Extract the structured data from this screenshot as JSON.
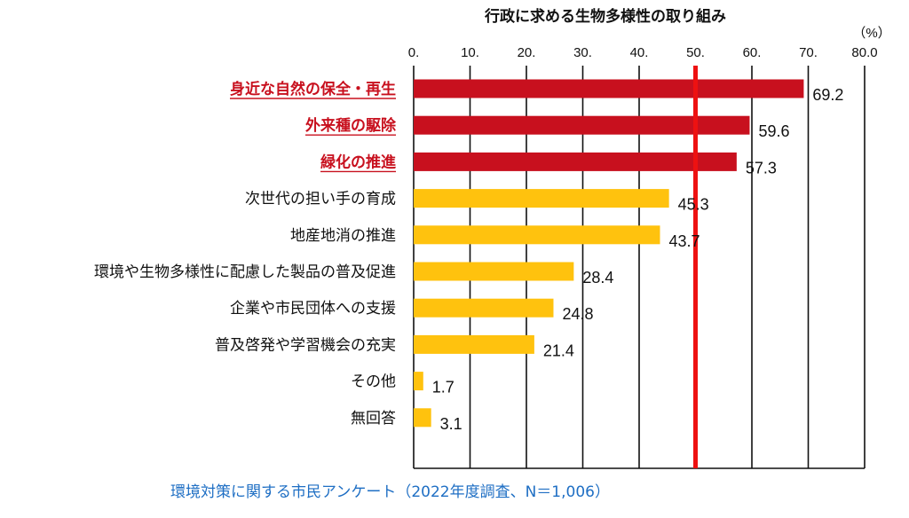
{
  "chart_data": {
    "type": "bar",
    "orientation": "horizontal",
    "title": "行政に求める生物多様性の取り組み",
    "unit": "（%）",
    "x_ticks": [
      "0.",
      "10.",
      "20.",
      "30.",
      "40.",
      "50.",
      "60.",
      "70.",
      "80.0"
    ],
    "xlim": [
      0,
      80
    ],
    "grid": true,
    "reference_line": {
      "value": 50,
      "color": "#ee1111"
    },
    "categories": [
      "身近な自然の保全・再生",
      "外来種の駆除",
      "緑化の推進",
      "次世代の担い手の育成",
      "地産地消の推進",
      "環境や生物多様性に配慮した製品の普及促進",
      "企業や市民団体への支援",
      "普及啓発や学習機会の充実",
      "その他",
      "無回答"
    ],
    "values": [
      69.2,
      59.6,
      57.3,
      45.3,
      43.7,
      28.4,
      24.8,
      21.4,
      1.7,
      3.1
    ],
    "value_labels": [
      "69.2",
      "59.6",
      "57.3",
      "45.3",
      "43.7",
      "28.4",
      "24.8",
      "21.4",
      "1.7",
      "3.1"
    ],
    "highlighted": [
      true,
      true,
      true,
      false,
      false,
      false,
      false,
      false,
      false,
      false
    ],
    "colors": {
      "highlight_bar": "#c8101e",
      "normal_bar": "#ffc20e",
      "highlight_text": "#c8101e",
      "normal_text": "#111111",
      "axis": "#111111"
    }
  },
  "caption": "環境対策に関する市民アンケート（2022年度調査、N＝1,006）"
}
